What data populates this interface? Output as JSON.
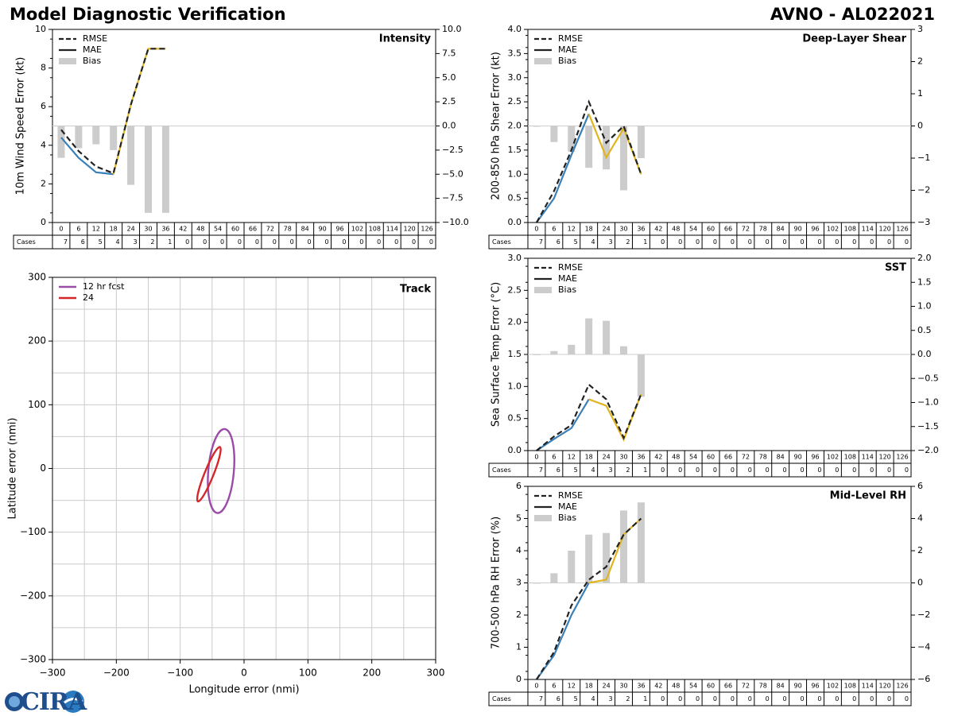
{
  "header": {
    "title": "Model Diagnostic Verification",
    "storm": "AVNO - AL022021"
  },
  "legend_labels": {
    "rmse": "RMSE",
    "mae": "MAE",
    "bias": "Bias",
    "cases": "Cases"
  },
  "colors": {
    "rmse": "#222222",
    "mae_early": "#3a80b8",
    "mae_late": "#e0b521",
    "bias": "#cccccc",
    "track12": "#9b4ba8",
    "track24": "#d62728",
    "grid": "#cccccc"
  },
  "forecast_hours": [
    0,
    6,
    12,
    18,
    24,
    30,
    36,
    42,
    48,
    54,
    60,
    66,
    72,
    78,
    84,
    90,
    96,
    102,
    108,
    114,
    120,
    126
  ],
  "cases": [
    7,
    6,
    5,
    4,
    3,
    2,
    1,
    0,
    0,
    0,
    0,
    0,
    0,
    0,
    0,
    0,
    0,
    0,
    0,
    0,
    0,
    0
  ],
  "chart_data": [
    {
      "id": "intensity",
      "type": "line",
      "title": "Intensity",
      "ylabel": "10m Wind Speed Error (kt)",
      "ylim": [
        0,
        10
      ],
      "yticks": [
        "0",
        "2",
        "4",
        "6",
        "8",
        "10"
      ],
      "y2lim": [
        -10,
        10
      ],
      "y2ticks": [
        "−10.0",
        "−7.5",
        "−5.0",
        "−2.5",
        "0.0",
        "2.5",
        "5.0",
        "7.5",
        "10.0"
      ],
      "series": [
        {
          "name": "RMSE",
          "x": [
            0,
            6,
            12,
            18,
            24,
            30,
            36
          ],
          "values": [
            4.8,
            3.7,
            2.9,
            2.55,
            6.1,
            9.0,
            9.0
          ]
        },
        {
          "name": "MAE",
          "x": [
            0,
            6,
            12,
            18,
            24,
            30,
            36
          ],
          "values": [
            4.4,
            3.35,
            2.6,
            2.5,
            6.1,
            9.0,
            9.0
          ]
        },
        {
          "name": "Bias",
          "x": [
            0,
            6,
            12,
            18,
            24,
            30,
            36
          ],
          "values": [
            -3.3,
            -2.3,
            -1.9,
            -2.5,
            -6.1,
            -9.0,
            -9.0
          ]
        }
      ]
    },
    {
      "id": "shear",
      "type": "line",
      "title": "Deep-Layer Shear",
      "ylabel": "200-850 hPa Shear Error (kt)",
      "ylim": [
        0,
        4
      ],
      "yticks": [
        "0.0",
        "0.5",
        "1.0",
        "1.5",
        "2.0",
        "2.5",
        "3.0",
        "3.5",
        "4.0"
      ],
      "y2lim": [
        -3,
        3
      ],
      "y2ticks": [
        "−3",
        "−2",
        "−1",
        "0",
        "1",
        "2",
        "3"
      ],
      "series": [
        {
          "name": "RMSE",
          "x": [
            0,
            6,
            12,
            18,
            24,
            30,
            36
          ],
          "values": [
            0.0,
            0.65,
            1.5,
            2.5,
            1.65,
            2.0,
            1.0
          ]
        },
        {
          "name": "MAE",
          "x": [
            0,
            6,
            12,
            18,
            24,
            30,
            36
          ],
          "values": [
            0.0,
            0.5,
            1.4,
            2.25,
            1.35,
            1.95,
            1.0
          ]
        },
        {
          "name": "Bias",
          "x": [
            0,
            6,
            12,
            18,
            24,
            30,
            36
          ],
          "values": [
            0.0,
            -0.5,
            -0.8,
            -1.3,
            -1.35,
            -2.0,
            -1.0
          ]
        }
      ]
    },
    {
      "id": "sst",
      "type": "line",
      "title": "SST",
      "ylabel": "Sea Surface Temp Error (°C)",
      "ylim": [
        0,
        3
      ],
      "yticks": [
        "0.0",
        "0.5",
        "1.0",
        "1.5",
        "2.0",
        "2.5",
        "3.0"
      ],
      "y2lim": [
        -2,
        2
      ],
      "y2ticks": [
        "−2.0",
        "−1.5",
        "−1.0",
        "−0.5",
        "0.0",
        "0.5",
        "1.0",
        "1.5",
        "2.0"
      ],
      "series": [
        {
          "name": "RMSE",
          "x": [
            0,
            6,
            12,
            18,
            24,
            30,
            36
          ],
          "values": [
            0.0,
            0.22,
            0.4,
            1.03,
            0.8,
            0.2,
            0.88
          ]
        },
        {
          "name": "MAE",
          "x": [
            0,
            6,
            12,
            18,
            24,
            30,
            36
          ],
          "values": [
            0.0,
            0.18,
            0.35,
            0.8,
            0.7,
            0.17,
            0.88
          ]
        },
        {
          "name": "Bias",
          "x": [
            0,
            6,
            12,
            18,
            24,
            30,
            36
          ],
          "values": [
            0.0,
            0.07,
            0.2,
            0.75,
            0.7,
            0.17,
            -0.88
          ]
        }
      ]
    },
    {
      "id": "rh",
      "type": "line",
      "title": "Mid-Level RH",
      "ylabel": "700-500 hPa RH Error (%)",
      "ylim": [
        0,
        6
      ],
      "yticks": [
        "0",
        "1",
        "2",
        "3",
        "4",
        "5",
        "6"
      ],
      "y2lim": [
        -6,
        6
      ],
      "y2ticks": [
        "−6",
        "−4",
        "−2",
        "0",
        "2",
        "4",
        "6"
      ],
      "series": [
        {
          "name": "RMSE",
          "x": [
            0,
            6,
            12,
            18,
            24,
            30,
            36
          ],
          "values": [
            0.0,
            0.85,
            2.3,
            3.1,
            3.5,
            4.5,
            5.0
          ]
        },
        {
          "name": "MAE",
          "x": [
            0,
            6,
            12,
            18,
            24,
            30,
            36
          ],
          "values": [
            0.0,
            0.75,
            2.0,
            3.0,
            3.1,
            4.5,
            5.0
          ]
        },
        {
          "name": "Bias",
          "x": [
            0,
            6,
            12,
            18,
            24,
            30,
            36
          ],
          "values": [
            0.0,
            0.6,
            2.0,
            3.0,
            3.1,
            4.5,
            5.0
          ]
        }
      ]
    },
    {
      "id": "track",
      "type": "scatter",
      "title": "Track",
      "xlabel": "Longitude error (nmi)",
      "ylabel": "Latitude error (nmi)",
      "xlim": [
        -300,
        300
      ],
      "ylim": [
        -300,
        300
      ],
      "xticks": [
        "−300",
        "−200",
        "−100",
        "0",
        "100",
        "200",
        "300"
      ],
      "yticks": [
        "−300",
        "−200",
        "−100",
        "0",
        "100",
        "200",
        "300"
      ],
      "series": [
        {
          "name": "12 hr fcst",
          "center": [
            -36,
            -4
          ],
          "semi_axes": [
            20,
            66
          ],
          "tilt_deg": 5
        },
        {
          "name": "24",
          "center": [
            -55,
            -9
          ],
          "semi_axes": [
            7,
            46
          ],
          "tilt_deg": 22
        }
      ]
    }
  ]
}
